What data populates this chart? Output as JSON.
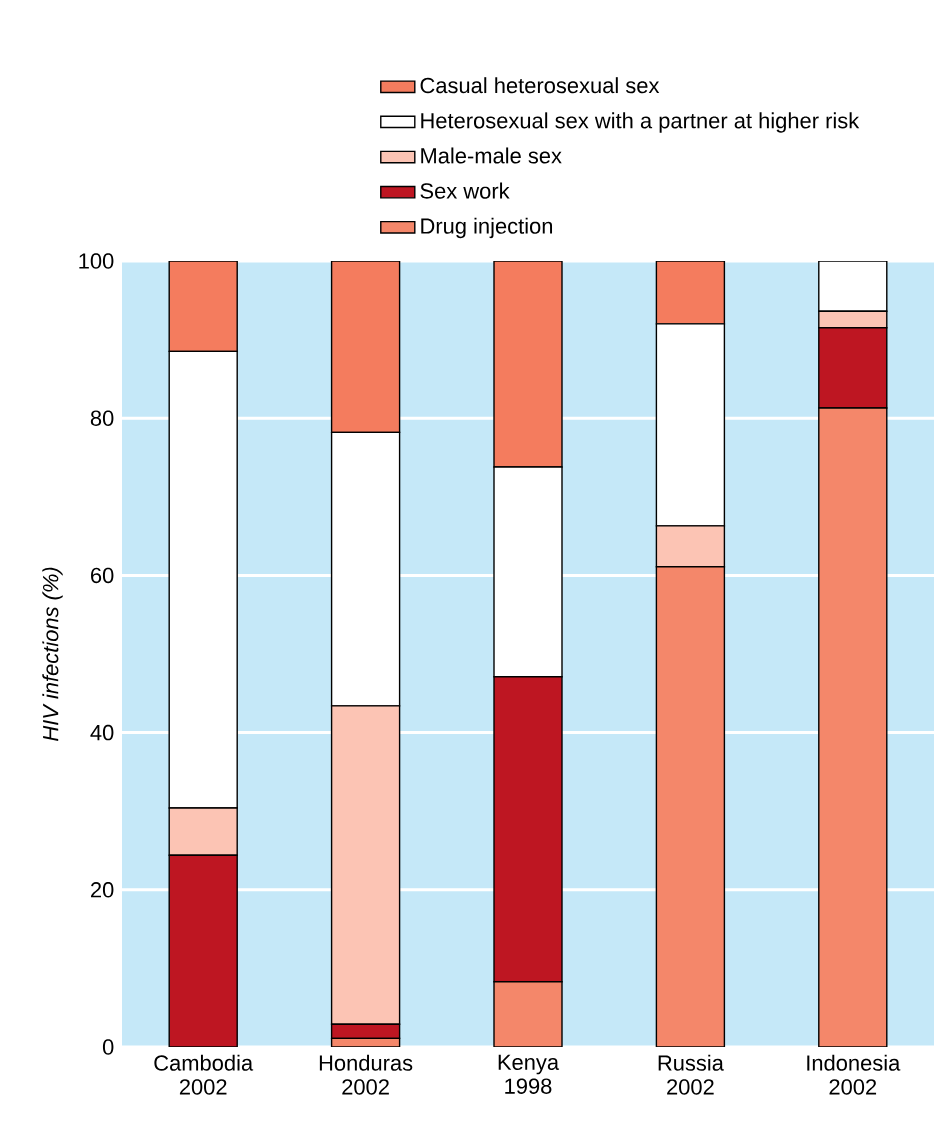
{
  "chart_data": {
    "type": "bar",
    "stacked": true,
    "ylabel": "HIV infections (%)",
    "categories": [
      "Cambodia 2002",
      "Honduras 2002",
      "Kenya 1998",
      "Russia 2002",
      "Indonesia 2002"
    ],
    "series": [
      {
        "name": "Drug injection",
        "color": "#f4876a",
        "values": [
          0,
          1.1,
          8.3,
          61.1,
          81.3
        ]
      },
      {
        "name": "Sex work",
        "color": "#be1622",
        "values": [
          24.4,
          1.8,
          38.8,
          0,
          10.2
        ]
      },
      {
        "name": "Male-male sex",
        "color": "#fcc4b4",
        "values": [
          6,
          40.5,
          0,
          5.2,
          2.1
        ]
      },
      {
        "name": "Heterosexual sex with a partner at higher risk",
        "color": "#ffffff",
        "values": [
          58.1,
          34.8,
          26.7,
          25.7,
          6.4
        ]
      },
      {
        "name": "Casual heterosexual sex",
        "color": "#f47c5e",
        "values": [
          11.5,
          21.8,
          26.2,
          8,
          0
        ]
      }
    ],
    "ylim": [
      0,
      100
    ],
    "yticks": [
      0,
      20,
      40,
      60,
      80,
      100
    ],
    "grid": "y",
    "legend": "top right"
  }
}
